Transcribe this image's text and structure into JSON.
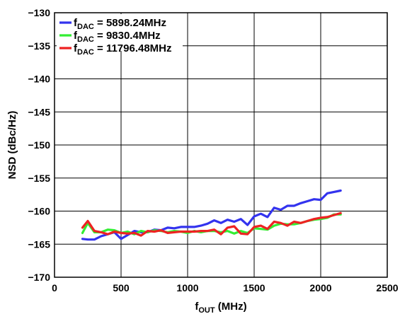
{
  "chart_data": {
    "type": "line",
    "xlabel": {
      "main": "f",
      "sub": "OUT",
      "rest": " (MHz)"
    },
    "ylabel": "NSD (dBc/Hz)",
    "xlim": [
      0,
      2500
    ],
    "ylim": [
      -170,
      -130
    ],
    "xticks": [
      "0",
      "500",
      "1000",
      "1500",
      "2000",
      "2500"
    ],
    "yticks": [
      "−130",
      "−135",
      "−140",
      "−145",
      "−150",
      "−155",
      "−160",
      "−165",
      "−170"
    ],
    "grid": true,
    "legend_position": "top-left",
    "series": [
      {
        "name": "f_DAC = 5898.24MHz",
        "label_main": "f",
        "label_sub": "DAC",
        "label_rest": " = 5898.24MHz",
        "color": "#3333ee",
        "x": [
          210,
          250,
          300,
          350,
          400,
          450,
          500,
          550,
          600,
          650,
          700,
          750,
          800,
          850,
          900,
          950,
          1000,
          1050,
          1100,
          1150,
          1200,
          1250,
          1300,
          1350,
          1400,
          1450,
          1500,
          1550,
          1600,
          1650,
          1700,
          1750,
          1800,
          1850,
          1900,
          1950,
          2000,
          2050,
          2100,
          2150
        ],
        "y": [
          -164.2,
          -164.3,
          -164.3,
          -163.8,
          -163.5,
          -163.2,
          -164.2,
          -163.6,
          -163.0,
          -163.2,
          -163.2,
          -162.8,
          -162.9,
          -162.5,
          -162.6,
          -162.4,
          -162.4,
          -162.4,
          -162.2,
          -161.9,
          -161.4,
          -161.8,
          -161.3,
          -161.6,
          -161.2,
          -162.1,
          -160.8,
          -160.4,
          -160.9,
          -159.5,
          -159.8,
          -159.2,
          -159.2,
          -158.8,
          -158.5,
          -158.2,
          -158.3,
          -157.3,
          -157.1,
          -156.9
        ]
      },
      {
        "name": "f_DAC = 9830.4MHz",
        "label_main": "f",
        "label_sub": "DAC",
        "label_rest": " = 9830.4MHz",
        "color": "#33ee33",
        "x": [
          210,
          250,
          300,
          350,
          400,
          450,
          500,
          550,
          600,
          650,
          700,
          750,
          800,
          850,
          900,
          950,
          1000,
          1050,
          1100,
          1150,
          1200,
          1250,
          1300,
          1350,
          1400,
          1450,
          1500,
          1550,
          1600,
          1650,
          1700,
          1750,
          1800,
          1850,
          1900,
          1950,
          2000,
          2050,
          2100,
          2150
        ],
        "y": [
          -163.3,
          -161.8,
          -163.2,
          -163.2,
          -162.8,
          -162.9,
          -163.3,
          -163.1,
          -163.5,
          -163.0,
          -163.2,
          -162.9,
          -163.0,
          -163.2,
          -163.0,
          -163.1,
          -163.3,
          -163.0,
          -163.2,
          -163.0,
          -163.0,
          -163.2,
          -163.0,
          -163.4,
          -163.0,
          -163.3,
          -162.6,
          -162.7,
          -162.8,
          -162.2,
          -161.9,
          -162.0,
          -162.0,
          -161.8,
          -161.5,
          -161.3,
          -161.2,
          -161.0,
          -160.5,
          -160.5
        ]
      },
      {
        "name": "f_DAC = 11796.48MHz",
        "label_main": "f",
        "label_sub": "DAC",
        "label_rest": " = 11796.48MHz",
        "color": "#ee2222",
        "x": [
          210,
          250,
          300,
          350,
          400,
          450,
          500,
          550,
          600,
          650,
          700,
          750,
          800,
          850,
          900,
          950,
          1000,
          1050,
          1100,
          1150,
          1200,
          1250,
          1300,
          1350,
          1400,
          1450,
          1500,
          1550,
          1600,
          1650,
          1700,
          1750,
          1800,
          1850,
          1900,
          1950,
          2000,
          2050,
          2100,
          2150
        ],
        "y": [
          -162.5,
          -161.5,
          -163.0,
          -163.2,
          -163.5,
          -163.1,
          -163.3,
          -163.4,
          -163.3,
          -163.7,
          -163.0,
          -163.1,
          -162.9,
          -163.3,
          -163.2,
          -163.1,
          -163.1,
          -163.1,
          -163.0,
          -163.0,
          -162.8,
          -163.5,
          -162.5,
          -162.3,
          -163.4,
          -163.5,
          -162.4,
          -162.2,
          -162.7,
          -161.6,
          -161.8,
          -162.2,
          -161.6,
          -161.8,
          -161.5,
          -161.2,
          -161.0,
          -160.9,
          -160.6,
          -160.3
        ]
      }
    ]
  }
}
